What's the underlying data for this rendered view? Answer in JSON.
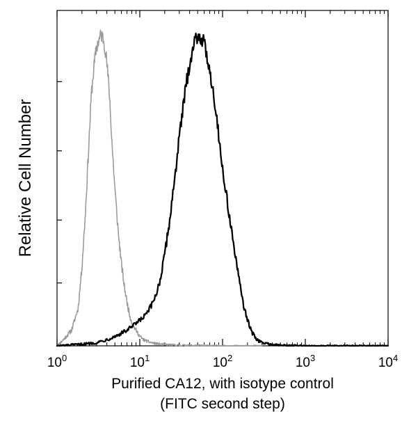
{
  "chart_data": {
    "type": "line",
    "title": "",
    "xlabel_line1": "Purified CA12, with isotype control",
    "xlabel_line2": "(FITC second step)",
    "ylabel": "Relative Cell Number",
    "xscale": "log",
    "xlim": [
      1,
      10000
    ],
    "ylim": [
      0,
      1
    ],
    "grid": false,
    "legend": "none",
    "x_ticks": [
      {
        "value": 1,
        "base": "10",
        "exp": "0"
      },
      {
        "value": 10,
        "base": "10",
        "exp": "1"
      },
      {
        "value": 100,
        "base": "10",
        "exp": "2"
      },
      {
        "value": 1000,
        "base": "10",
        "exp": "3"
      },
      {
        "value": 10000,
        "base": "10",
        "exp": "4"
      }
    ],
    "y_ticks": [
      0.0,
      0.2,
      0.4,
      0.62,
      0.84
    ],
    "series": [
      {
        "role": "isotype-control",
        "color": "#9a9a9a",
        "x": [
          1.0,
          1.2,
          1.5,
          1.8,
          2.0,
          2.2,
          2.4,
          2.6,
          2.8,
          3.0,
          3.2,
          3.4,
          3.6,
          3.8,
          4.0,
          4.3,
          4.6,
          5.0,
          5.5,
          6.0,
          6.5,
          7.0,
          7.5,
          8.0,
          8.5,
          9.0,
          10.0,
          11.0,
          13.0,
          15.0,
          18.0,
          20.0,
          30.0,
          50.0,
          100.0,
          300.0
        ],
        "y": [
          0.0,
          0.02,
          0.05,
          0.12,
          0.25,
          0.42,
          0.62,
          0.8,
          0.89,
          0.95,
          0.97,
          0.99,
          0.98,
          0.95,
          0.9,
          0.8,
          0.65,
          0.5,
          0.36,
          0.26,
          0.19,
          0.14,
          0.1,
          0.075,
          0.06,
          0.05,
          0.03,
          0.02,
          0.012,
          0.008,
          0.005,
          0.004,
          0.002,
          0.001,
          0.0,
          0.0
        ]
      },
      {
        "role": "CA12",
        "color": "#000000",
        "x": [
          1.0,
          2.0,
          3.0,
          4.0,
          5.0,
          6.0,
          7.0,
          8.0,
          10.0,
          12.0,
          14.0,
          16.0,
          18.0,
          20.0,
          23.0,
          26.0,
          30.0,
          35.0,
          40.0,
          45.0,
          50.0,
          55.0,
          60.0,
          70.0,
          80.0,
          90.0,
          100.0,
          120.0,
          140.0,
          160.0,
          180.0,
          200.0,
          230.0,
          260.0,
          300.0,
          400.0,
          500.0,
          700.0,
          1000.0,
          10000.0
        ],
        "y": [
          0.0,
          0.005,
          0.01,
          0.02,
          0.03,
          0.04,
          0.05,
          0.06,
          0.08,
          0.1,
          0.13,
          0.17,
          0.22,
          0.29,
          0.4,
          0.52,
          0.66,
          0.8,
          0.9,
          0.96,
          0.99,
          0.98,
          0.96,
          0.88,
          0.78,
          0.67,
          0.56,
          0.42,
          0.3,
          0.2,
          0.13,
          0.08,
          0.04,
          0.02,
          0.01,
          0.004,
          0.002,
          0.001,
          0.0,
          0.0
        ]
      }
    ]
  }
}
